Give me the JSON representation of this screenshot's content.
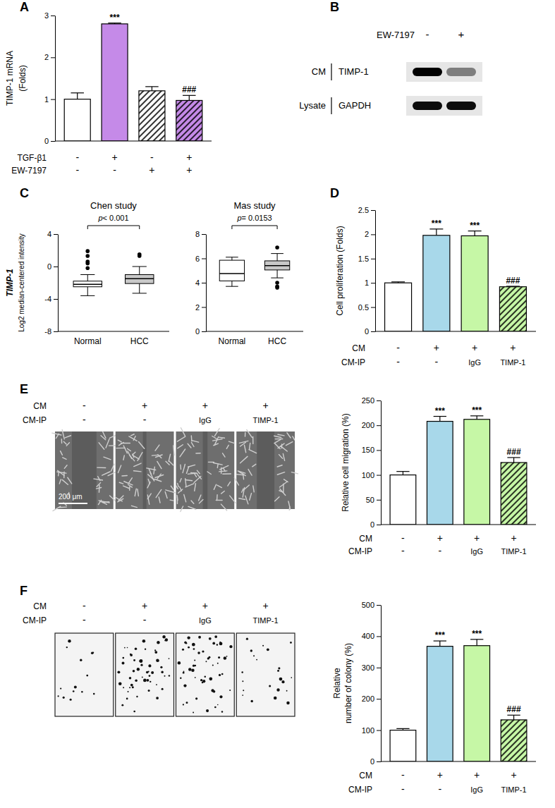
{
  "chart_data": [
    {
      "panel": "A",
      "type": "bar",
      "ylabel": [
        "TIMP-1 mRNA",
        "(Folds)"
      ],
      "ylim": [
        0,
        3
      ],
      "yticks": [
        0,
        1,
        2,
        3
      ],
      "values": [
        1.0,
        2.8,
        1.2,
        0.97
      ],
      "errors": [
        0.15,
        0.02,
        0.1,
        0.12
      ],
      "colors": [
        "#ffffff",
        "#c58ae8",
        "#ffffff",
        "#c58ae8"
      ],
      "annotations": [
        null,
        "***",
        null,
        "###"
      ],
      "conditions": [
        {
          "label": "TGF-β1",
          "values": [
            "-",
            "+",
            "-",
            "+"
          ]
        },
        {
          "label": "EW-7197",
          "values": [
            "-",
            "-",
            "+",
            "+"
          ]
        }
      ]
    },
    {
      "panel": "B",
      "type": "blot",
      "treatment": "EW-7197",
      "lanes": [
        "-",
        "+"
      ],
      "rows": [
        {
          "group": "CM",
          "label": "TIMP-1",
          "intensity": [
            1,
            0.45
          ]
        },
        {
          "group": "Lysate",
          "label": "GAPDH",
          "intensity": [
            0.95,
            0.95
          ]
        }
      ]
    },
    {
      "panel": "C",
      "type": "box",
      "ylabel": [
        "TIMP-1",
        "Log2 median-centered intensity"
      ],
      "subplots": [
        {
          "title": "Chen study",
          "ylim": [
            -8,
            4
          ],
          "yticks": [
            -8,
            -4,
            0,
            4
          ],
          "categories": [
            "Normal",
            "HCC"
          ],
          "colors": [
            "#ffffff",
            "#c8c8c8"
          ],
          "p_label": "p< 0.001",
          "boxes": [
            {
              "low": -3.6,
              "q1": -2.5,
              "median": -2.2,
              "q3": -1.8,
              "high": -1.0,
              "outliers": [
                1.9,
                1.3,
                0.6,
                0.4,
                -0.2
              ]
            },
            {
              "low": -3.3,
              "q1": -2.1,
              "median": -1.5,
              "q3": -1.0,
              "high": 0.0,
              "outliers": [
                1.5,
                1.3
              ]
            }
          ]
        },
        {
          "title": "Mas study",
          "ylim": [
            0,
            8
          ],
          "yticks": [
            0,
            2,
            4,
            6,
            8
          ],
          "categories": [
            "Normal",
            "HCC"
          ],
          "colors": [
            "#ffffff",
            "#c8c8c8"
          ],
          "p_label": "p= 0.0153",
          "boxes": [
            {
              "low": 3.7,
              "q1": 4.15,
              "median": 4.75,
              "q3": 5.85,
              "high": 6.1,
              "outliers": []
            },
            {
              "low": 4.4,
              "q1": 5.05,
              "median": 5.4,
              "q3": 5.8,
              "high": 6.4,
              "outliers": [
                6.9,
                4.0,
                3.7,
                3.6
              ]
            }
          ]
        }
      ]
    },
    {
      "panel": "D",
      "type": "bar",
      "ylabel": "Cell proliferation (Folds)",
      "ylim": [
        0,
        2.5
      ],
      "yticks": [
        0,
        0.5,
        1,
        1.5,
        2,
        2.5
      ],
      "values": [
        1.0,
        1.98,
        1.97,
        0.92
      ],
      "errors": [
        0.02,
        0.13,
        0.1,
        0.01
      ],
      "colors": [
        "#ffffff",
        "#a8d8ea",
        "#c6f7a6",
        "#c6f7a6"
      ],
      "annotations": [
        null,
        "***",
        "***",
        "###"
      ],
      "conditions": [
        {
          "label": "CM",
          "values": [
            "-",
            "+",
            "+",
            "+"
          ]
        },
        {
          "label": "CM-IP",
          "values": [
            "-",
            "-",
            "IgG",
            "TIMP-1"
          ]
        }
      ]
    },
    {
      "panel": "E",
      "type": "bar",
      "ylabel": "Relative cell migration (%)",
      "ylim": [
        0,
        250
      ],
      "yticks": [
        0,
        50,
        100,
        150,
        200,
        250
      ],
      "values": [
        100,
        208,
        212,
        125
      ],
      "errors": [
        7,
        10,
        7,
        10
      ],
      "colors": [
        "#ffffff",
        "#a8d8ea",
        "#c6f7a6",
        "#c6f7a6"
      ],
      "annotations": [
        null,
        "***",
        "***",
        "###"
      ],
      "scale_bar": "200 μm",
      "conditions": [
        {
          "label": "CM",
          "values": [
            "-",
            "+",
            "+",
            "+"
          ]
        },
        {
          "label": "CM-IP",
          "values": [
            "-",
            "-",
            "IgG",
            "TIMP-1"
          ]
        }
      ]
    },
    {
      "panel": "F",
      "type": "bar",
      "ylabel": [
        "Relative",
        "number of colony (%)"
      ],
      "ylim": [
        0,
        500
      ],
      "yticks": [
        0,
        100,
        200,
        300,
        400,
        500
      ],
      "values": [
        100,
        368,
        370,
        133
      ],
      "errors": [
        5,
        17,
        20,
        15
      ],
      "colors": [
        "#ffffff",
        "#a8d8ea",
        "#c6f7a6",
        "#c6f7a6"
      ],
      "annotations": [
        null,
        "***",
        "***",
        "###"
      ],
      "conditions": [
        {
          "label": "CM",
          "values": [
            "-",
            "+",
            "+",
            "+"
          ]
        },
        {
          "label": "CM-IP",
          "values": [
            "-",
            "-",
            "IgG",
            "TIMP-1"
          ]
        }
      ]
    }
  ]
}
